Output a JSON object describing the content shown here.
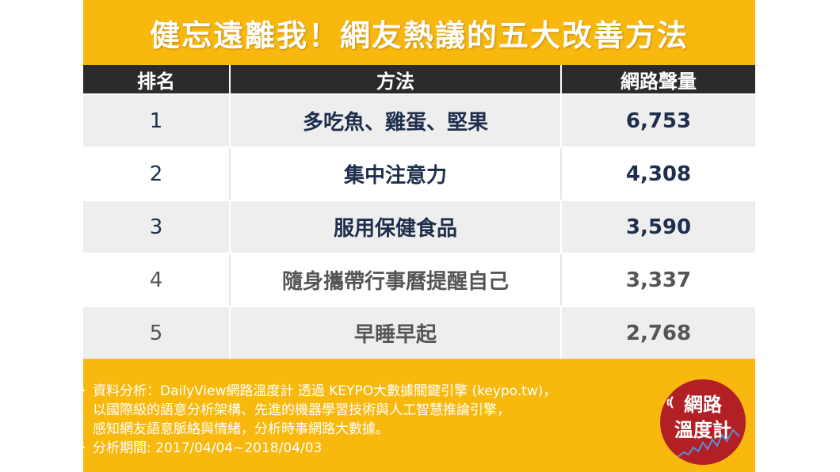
{
  "title": "健忘遠離我！網友熱議的五大改善方法",
  "table": {
    "headers": [
      "排名",
      "方法",
      "網路聲量"
    ],
    "rows": [
      {
        "rank": "1",
        "method": "多吃魚、雞蛋、堅果",
        "volume": "6,753"
      },
      {
        "rank": "2",
        "method": "集中注意力",
        "volume": "4,308"
      },
      {
        "rank": "3",
        "method": "服用保健食品",
        "volume": "3,590"
      },
      {
        "rank": "4",
        "method": "隨身攜帶行事曆提醒自己",
        "volume": "3,337"
      },
      {
        "rank": "5",
        "method": "早睡早起",
        "volume": "2,768"
      }
    ]
  },
  "footer": {
    "lines": [
      "資料分析：DailyView網路溫度計 透過 KEYPO大數據關鍵引擎 (keypo.tw)，",
      "以國際級的語意分析架構、先進的機器學習技術與人工智慧推論引擎，",
      "感知網友語意脈絡與情緒，分析時事網路大數據。",
      "分析期間: 2017/04/04~2018/04/03"
    ]
  },
  "logo": {
    "line1": "網路",
    "line2": "溫度計"
  },
  "colors": {
    "background": "#f8b80e",
    "header_bg": "#2b2b2b",
    "logo_red": "#b21f24",
    "text_navy": "#1e2e4c"
  }
}
